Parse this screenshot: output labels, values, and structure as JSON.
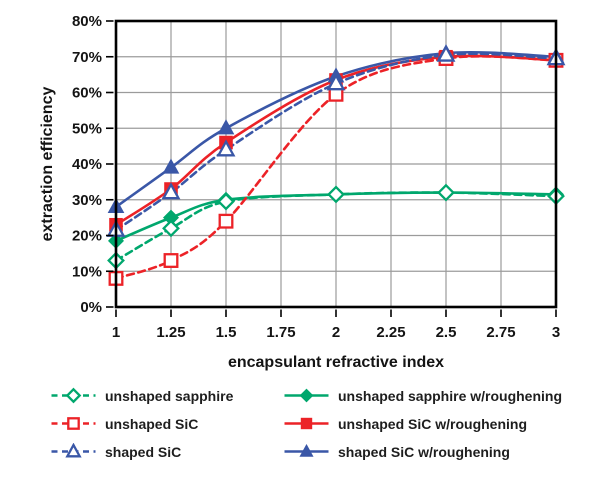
{
  "chart_data": {
    "type": "line",
    "title": "",
    "xlabel": "encapsulant refractive index",
    "ylabel": "extraction efficiency",
    "xlim": [
      1,
      3
    ],
    "ylim": [
      0,
      80
    ],
    "grid": true,
    "legend_position": "bottom",
    "x_ticks": [
      1,
      1.25,
      1.5,
      1.75,
      2,
      2.25,
      2.5,
      2.75,
      3
    ],
    "x_tick_labels": [
      "1",
      "1.25",
      "1.5",
      "1.75",
      "2",
      "2.25",
      "2.5",
      "2.75",
      "3"
    ],
    "y_ticks": [
      0,
      10,
      20,
      30,
      40,
      50,
      60,
      70,
      80
    ],
    "y_tick_labels": [
      "0%",
      "10%",
      "20%",
      "30%",
      "40%",
      "50%",
      "60%",
      "70%",
      "80%"
    ],
    "x": [
      1,
      1.25,
      1.5,
      2,
      2.5,
      3
    ],
    "series": [
      {
        "name": "unshaped sapphire",
        "color": "#00A76D",
        "line": "dashed",
        "marker": "diamond",
        "fill": "open",
        "values": [
          13,
          22,
          29.5,
          31.5,
          32,
          31
        ]
      },
      {
        "name": "unshaped sapphire w/roughening",
        "color": "#00A76D",
        "line": "solid",
        "marker": "diamond",
        "fill": "filled",
        "values": [
          18.5,
          25,
          30,
          31.5,
          32,
          31.5
        ]
      },
      {
        "name": "unshaped SiC",
        "color": "#EC2227",
        "line": "dashed",
        "marker": "square",
        "fill": "open",
        "values": [
          8,
          13,
          24,
          59.5,
          69.5,
          69
        ]
      },
      {
        "name": "unshaped SiC w/roughening",
        "color": "#EC2227",
        "line": "solid",
        "marker": "square",
        "fill": "filled",
        "values": [
          23,
          33,
          46,
          63.5,
          70,
          69
        ]
      },
      {
        "name": "shaped SiC",
        "color": "#3A57A7",
        "line": "dashed",
        "marker": "triangle",
        "fill": "open",
        "values": [
          21.5,
          32,
          44,
          62.5,
          70.5,
          69.5
        ]
      },
      {
        "name": "shaped SiC w/roughening",
        "color": "#3A57A7",
        "line": "solid",
        "marker": "triangle",
        "fill": "filled",
        "values": [
          28,
          39,
          50,
          64.5,
          71,
          70
        ]
      }
    ],
    "colors": {
      "grid": "#9b9b9b",
      "frame": "#000000",
      "text": "#141414",
      "background": "#ffffff"
    }
  }
}
